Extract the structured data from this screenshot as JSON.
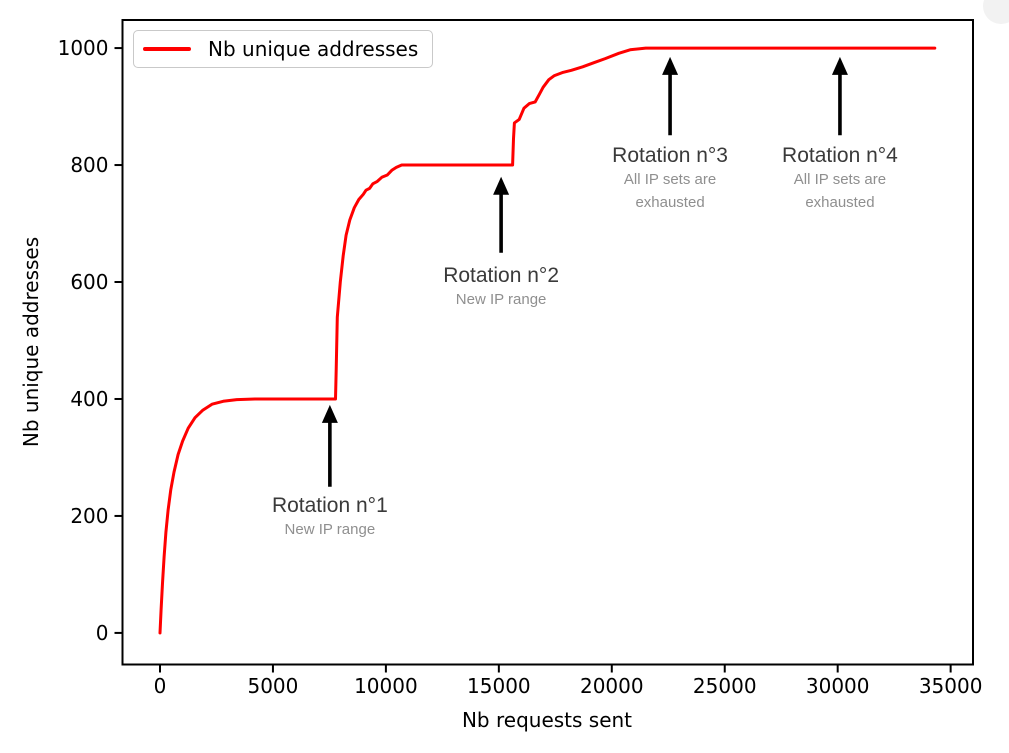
{
  "chart_data": {
    "type": "line",
    "title": "",
    "xlabel": "Nb requests sent",
    "ylabel": "Nb unique addresses",
    "xlim": [
      -1660,
      35990
    ],
    "ylim": [
      -54,
      1048
    ],
    "x_ticks": [
      0,
      5000,
      10000,
      15000,
      20000,
      25000,
      30000,
      35000
    ],
    "y_ticks": [
      0,
      200,
      400,
      600,
      800,
      1000
    ],
    "grid": false,
    "legend": {
      "position": "upper-left",
      "entries": [
        {
          "label": "Nb unique addresses",
          "color": "#ff0000"
        }
      ]
    },
    "series": [
      {
        "name": "Nb unique addresses",
        "color": "#ff0000",
        "linewidth": 3,
        "points": [
          [
            0,
            0
          ],
          [
            50,
            40
          ],
          [
            110,
            85
          ],
          [
            180,
            130
          ],
          [
            260,
            172
          ],
          [
            360,
            210
          ],
          [
            480,
            245
          ],
          [
            620,
            275
          ],
          [
            800,
            305
          ],
          [
            1000,
            328
          ],
          [
            1250,
            350
          ],
          [
            1550,
            368
          ],
          [
            1900,
            381
          ],
          [
            2300,
            391
          ],
          [
            2800,
            396
          ],
          [
            3400,
            399
          ],
          [
            4200,
            400
          ],
          [
            7770,
            400
          ],
          [
            7800,
            450
          ],
          [
            7850,
            540
          ],
          [
            7980,
            600
          ],
          [
            8110,
            645
          ],
          [
            8240,
            680
          ],
          [
            8400,
            706
          ],
          [
            8600,
            727
          ],
          [
            8800,
            741
          ],
          [
            9000,
            750
          ],
          [
            9120,
            757
          ],
          [
            9280,
            760
          ],
          [
            9420,
            768
          ],
          [
            9620,
            772
          ],
          [
            9820,
            779
          ],
          [
            10060,
            783
          ],
          [
            10260,
            791
          ],
          [
            10460,
            796
          ],
          [
            10700,
            800
          ],
          [
            15610,
            800
          ],
          [
            15650,
            845
          ],
          [
            15690,
            872
          ],
          [
            15900,
            878
          ],
          [
            16110,
            897
          ],
          [
            16350,
            905
          ],
          [
            16610,
            908
          ],
          [
            16810,
            922
          ],
          [
            16960,
            933
          ],
          [
            17210,
            946
          ],
          [
            17460,
            953
          ],
          [
            17810,
            958
          ],
          [
            18210,
            962
          ],
          [
            18710,
            968
          ],
          [
            19210,
            975
          ],
          [
            19710,
            982
          ],
          [
            20310,
            991
          ],
          [
            20810,
            997
          ],
          [
            21500,
            1000
          ],
          [
            34300,
            1000
          ]
        ]
      }
    ],
    "annotations": [
      {
        "label": "Rotation n°1",
        "sublabel": [
          "New IP range"
        ],
        "x": 7520,
        "arrow_tip_y": 390,
        "arrow_tail_y": 250,
        "text_top_y": 240
      },
      {
        "label": "Rotation n°2",
        "sublabel": [
          "New IP range"
        ],
        "x": 15100,
        "arrow_tip_y": 780,
        "arrow_tail_y": 650,
        "text_top_y": 632
      },
      {
        "label": "Rotation n°3",
        "sublabel": [
          "All IP sets are",
          "exhausted"
        ],
        "x": 22580,
        "arrow_tip_y": 985,
        "arrow_tail_y": 851,
        "text_top_y": 837
      },
      {
        "label": "Rotation n°4",
        "sublabel": [
          "All IP sets are",
          "exhausted"
        ],
        "x": 30100,
        "arrow_tip_y": 985,
        "arrow_tail_y": 851,
        "text_top_y": 837
      }
    ],
    "colors": {
      "line": "#ff0000",
      "axis": "#000000",
      "tick_label": "#000000",
      "annotation_label": "#3a3a3a",
      "annotation_sublabel": "#8f8f8f",
      "arrow": "#000000"
    }
  }
}
